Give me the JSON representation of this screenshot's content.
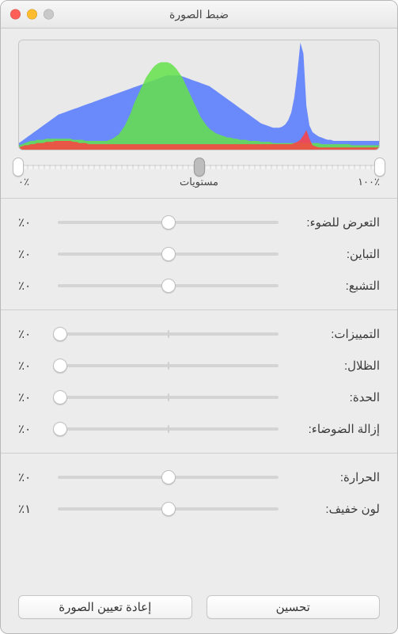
{
  "window": {
    "title": "ضبط الصورة",
    "traffic_colors": {
      "close": "#ff5f57",
      "min": "#febc2e",
      "max": "#c9c9c9"
    }
  },
  "histogram": {
    "background": "#e9e9e9",
    "frame_border": "#c4c4c4",
    "channels": {
      "red": {
        "color": "#ff4040",
        "opacity": 0.85
      },
      "green": {
        "color": "#64e04a",
        "opacity": 0.85
      },
      "blue": {
        "color": "#4a72ff",
        "opacity": 0.8
      }
    },
    "bins": 120,
    "red_values": [
      2,
      3,
      4,
      4,
      5,
      5,
      6,
      6,
      6,
      7,
      7,
      7,
      8,
      8,
      8,
      8,
      8,
      8,
      7,
      7,
      6,
      6,
      6,
      5,
      5,
      5,
      5,
      5,
      5,
      5,
      5,
      5,
      5,
      5,
      5,
      5,
      5,
      5,
      5,
      5,
      5,
      5,
      5,
      5,
      5,
      5,
      5,
      5,
      5,
      5,
      5,
      5,
      5,
      5,
      5,
      5,
      5,
      5,
      5,
      5,
      5,
      5,
      5,
      5,
      5,
      5,
      5,
      5,
      5,
      5,
      5,
      5,
      5,
      5,
      5,
      5,
      5,
      5,
      5,
      5,
      5,
      5,
      5,
      5,
      5,
      5,
      5,
      5,
      5,
      5,
      5,
      6,
      7,
      9,
      13,
      18,
      10,
      4,
      3,
      2,
      2,
      2,
      2,
      2,
      2,
      2,
      2,
      2,
      2,
      2,
      2,
      2,
      2,
      2,
      2,
      2,
      2,
      2,
      2,
      2
    ],
    "green_values": [
      4,
      5,
      6,
      7,
      8,
      8,
      9,
      9,
      9,
      10,
      10,
      10,
      10,
      10,
      10,
      10,
      10,
      10,
      9,
      9,
      9,
      9,
      8,
      8,
      8,
      8,
      8,
      8,
      8,
      8,
      9,
      10,
      12,
      14,
      18,
      22,
      28,
      34,
      42,
      48,
      54,
      60,
      66,
      70,
      74,
      77,
      79,
      80,
      80,
      80,
      79,
      77,
      74,
      70,
      66,
      60,
      54,
      48,
      42,
      36,
      30,
      26,
      22,
      19,
      17,
      15,
      14,
      13,
      12,
      11,
      11,
      10,
      10,
      9,
      9,
      9,
      8,
      8,
      8,
      8,
      7,
      7,
      7,
      7,
      6,
      6,
      6,
      6,
      6,
      6,
      6,
      6,
      6,
      6,
      6,
      6,
      6,
      6,
      6,
      6,
      5,
      5,
      5,
      5,
      5,
      5,
      5,
      5,
      5,
      5,
      4,
      4,
      4,
      4,
      4,
      4,
      4,
      4,
      4,
      4
    ],
    "blue_values": [
      6,
      8,
      10,
      12,
      14,
      16,
      18,
      20,
      22,
      24,
      26,
      28,
      30,
      32,
      33,
      34,
      35,
      36,
      37,
      38,
      39,
      40,
      41,
      42,
      43,
      44,
      45,
      46,
      47,
      48,
      49,
      50,
      51,
      52,
      53,
      54,
      55,
      56,
      57,
      58,
      59,
      60,
      61,
      62,
      63,
      64,
      65,
      66,
      67,
      68,
      68,
      68,
      68,
      68,
      67,
      66,
      65,
      64,
      63,
      62,
      61,
      60,
      59,
      58,
      56,
      54,
      52,
      50,
      48,
      46,
      44,
      42,
      40,
      38,
      36,
      34,
      32,
      30,
      28,
      26,
      24,
      23,
      22,
      21,
      20,
      20,
      20,
      21,
      23,
      27,
      34,
      48,
      70,
      98,
      88,
      40,
      22,
      16,
      14,
      12,
      11,
      10,
      9,
      9,
      8,
      8,
      8,
      8,
      8,
      8,
      8,
      8,
      8,
      8,
      8,
      8,
      8,
      8,
      8,
      8
    ]
  },
  "levels": {
    "track_ticks": true,
    "thumbs": {
      "black": 0.0,
      "mid": 0.5,
      "white": 1.0
    },
    "labels": {
      "left": "٪١٠٠",
      "center": "مستويات",
      "right": "٪٠"
    }
  },
  "slider_style": {
    "track_color": "#d4d4d4",
    "thumb_color": "#ffffff",
    "thumb_border": "#bfbfbf",
    "tick_color": "#cfcfcf"
  },
  "groups": [
    {
      "rows": [
        {
          "key": "exposure",
          "label": "التعرض للضوء:",
          "value_text": "٪٠",
          "position": 0.5,
          "center_tick": true
        },
        {
          "key": "contrast",
          "label": "التباين:",
          "value_text": "٪٠",
          "position": 0.5,
          "center_tick": true
        },
        {
          "key": "saturation",
          "label": "التشبع:",
          "value_text": "٪٠",
          "position": 0.5,
          "center_tick": true
        }
      ]
    },
    {
      "rows": [
        {
          "key": "highlights",
          "label": "التمييزات:",
          "value_text": "٪٠",
          "position": 0.97,
          "center_tick": true
        },
        {
          "key": "shadows",
          "label": "الظلال:",
          "value_text": "٪٠",
          "position": 0.97,
          "center_tick": true
        },
        {
          "key": "sharpness",
          "label": "الحدة:",
          "value_text": "٪٠",
          "position": 0.97,
          "center_tick": true
        },
        {
          "key": "denoise",
          "label": "إزالة الضوضاء:",
          "value_text": "٪٠",
          "position": 0.97,
          "center_tick": true
        }
      ]
    },
    {
      "rows": [
        {
          "key": "temperature",
          "label": "الحرارة:",
          "value_text": "٪٠",
          "position": 0.5,
          "center_tick": true
        },
        {
          "key": "tint",
          "label": "لون خفيف:",
          "value_text": "٪١",
          "position": 0.5,
          "center_tick": true
        }
      ]
    }
  ],
  "buttons": {
    "enhance": "تحسين",
    "reset": "إعادة تعيين الصورة"
  }
}
